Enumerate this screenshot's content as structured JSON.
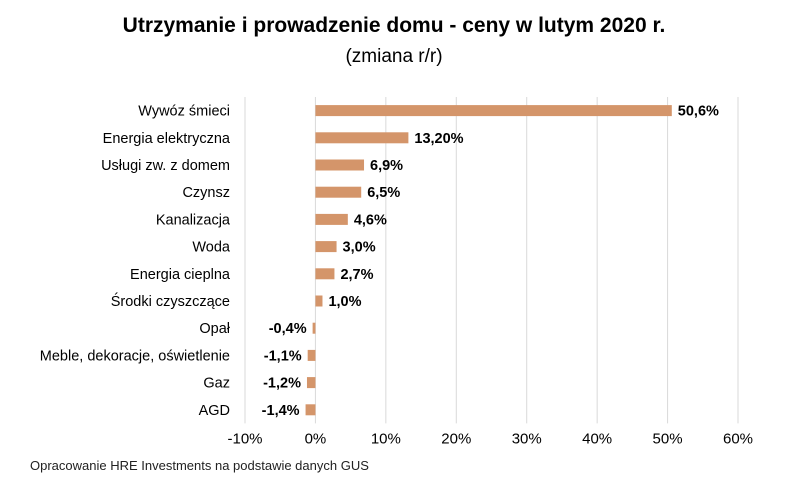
{
  "chart_data": {
    "type": "bar",
    "orientation": "horizontal",
    "title": "Utrzymanie i prowadzenie domu - ceny w lutym 2020 r.",
    "subtitle": "(zmiana r/r)",
    "categories": [
      "Wywóz śmieci",
      "Energia elektryczna",
      "Usługi zw. z domem",
      "Czynsz",
      "Kanalizacja",
      "Woda",
      "Energia cieplna",
      "Środki czyszczące",
      "Opał",
      "Meble, dekoracje, oświetlenie",
      "Gaz",
      "AGD"
    ],
    "values": [
      50.6,
      13.2,
      6.9,
      6.5,
      4.6,
      3.0,
      2.7,
      1.0,
      -0.4,
      -1.1,
      -1.2,
      -1.4
    ],
    "value_labels": [
      "50,6%",
      "13,20%",
      "6,9%",
      "6,5%",
      "4,6%",
      "3,0%",
      "2,7%",
      "1,0%",
      "-0,4%",
      "-1,1%",
      "-1,2%",
      "-1,4%"
    ],
    "xlim": [
      -10,
      60
    ],
    "x_ticks": [
      -10,
      0,
      10,
      20,
      30,
      40,
      50,
      60
    ],
    "x_tick_labels": [
      "-10%",
      "0%",
      "10%",
      "20%",
      "30%",
      "40%",
      "50%",
      "60%"
    ],
    "grid": "vertical",
    "bar_color": "#D4956A",
    "gridline_color": "#D9D9D9"
  },
  "source_note": "Opracowanie HRE Investments na podstawie danych GUS"
}
